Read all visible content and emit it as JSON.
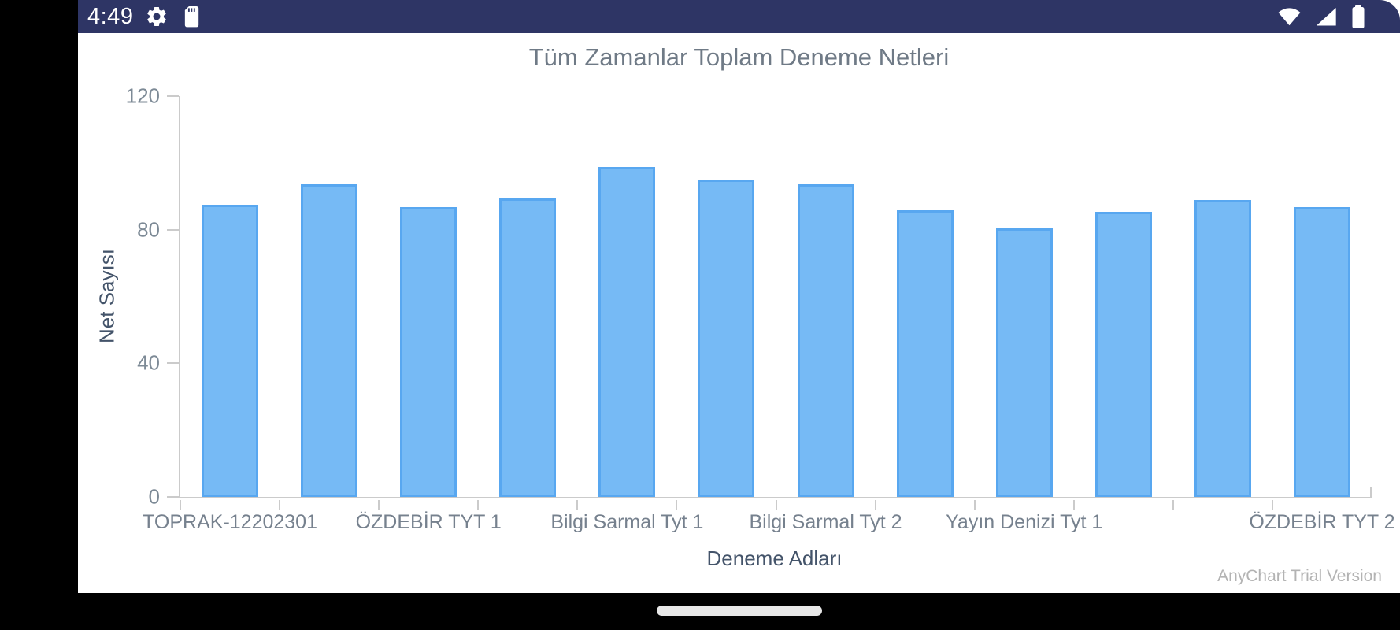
{
  "status_bar": {
    "time": "4:49",
    "bg_color": "#2e3565",
    "left_icons": [
      "gear-icon",
      "sd-card-icon"
    ],
    "right_icons": [
      "wifi-icon",
      "cellular-signal-icon",
      "battery-icon"
    ]
  },
  "chart_data": {
    "type": "bar",
    "title": "Tüm Zamanlar Toplam Deneme Netleri",
    "xlabel": "Deneme Adları",
    "ylabel": "Net Sayısı",
    "ylim": [
      0,
      120
    ],
    "yticks": [
      0,
      40,
      80,
      120
    ],
    "grid": false,
    "legend": false,
    "values": [
      87.5,
      93.5,
      86.75,
      89.25,
      98.75,
      95,
      93.5,
      85.75,
      80.5,
      85.25,
      89,
      86.75
    ],
    "x_tick_labels": [
      {
        "index": 0,
        "label": "TOPRAK-12202301"
      },
      {
        "index": 2,
        "label": "ÖZDEBİR TYT 1"
      },
      {
        "index": 4,
        "label": "Bilgi Sarmal Tyt 1"
      },
      {
        "index": 6,
        "label": "Bilgi Sarmal Tyt 2"
      },
      {
        "index": 8,
        "label": "Yayın Denizi Tyt 1"
      },
      {
        "index": 11,
        "label": "ÖZDEBİR TYT 2"
      }
    ],
    "bar_fill": "#76baf5",
    "bar_stroke": "#58a7f0",
    "axis_color": "#cbcbcb",
    "watermark": "AnyChart Trial Version"
  },
  "nav_bar": {
    "pill_color": "#e7e7e7"
  }
}
